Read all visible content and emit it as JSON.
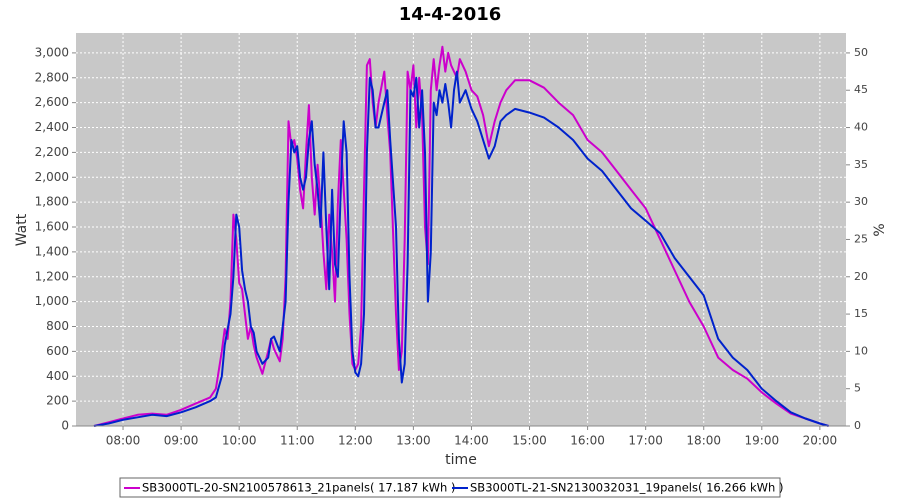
{
  "chart_data": {
    "type": "line",
    "title": "14-4-2016",
    "x_label": "time",
    "y_label": "Watt",
    "y2_label": "%",
    "x": [
      7.5,
      7.75,
      8.0,
      8.25,
      8.5,
      8.75,
      9.0,
      9.25,
      9.5,
      9.6,
      9.7,
      9.75,
      9.8,
      9.85,
      9.9,
      9.95,
      10.0,
      10.05,
      10.1,
      10.15,
      10.2,
      10.25,
      10.3,
      10.4,
      10.5,
      10.55,
      10.6,
      10.7,
      10.75,
      10.8,
      10.85,
      10.9,
      10.95,
      11.0,
      11.05,
      11.1,
      11.15,
      11.2,
      11.25,
      11.3,
      11.35,
      11.4,
      11.45,
      11.5,
      11.55,
      11.6,
      11.65,
      11.7,
      11.75,
      11.8,
      11.85,
      11.9,
      11.95,
      12.0,
      12.05,
      12.1,
      12.15,
      12.2,
      12.25,
      12.3,
      12.35,
      12.4,
      12.5,
      12.55,
      12.6,
      12.7,
      12.75,
      12.8,
      12.85,
      12.9,
      12.95,
      13.0,
      13.05,
      13.1,
      13.15,
      13.2,
      13.25,
      13.3,
      13.35,
      13.4,
      13.45,
      13.5,
      13.55,
      13.6,
      13.65,
      13.7,
      13.75,
      13.8,
      13.9,
      14.0,
      14.1,
      14.2,
      14.3,
      14.4,
      14.5,
      14.6,
      14.75,
      15.0,
      15.25,
      15.5,
      15.75,
      16.0,
      16.25,
      16.5,
      16.75,
      17.0,
      17.25,
      17.5,
      17.75,
      18.0,
      18.25,
      18.5,
      18.75,
      19.0,
      19.25,
      19.5,
      19.75,
      20.0,
      20.15
    ],
    "series": [
      {
        "name": "SB3000TL-20-SN2100578613_21panels( 17.187 kWh )",
        "color": "#cc00cc",
        "values": [
          0,
          30,
          60,
          90,
          100,
          90,
          130,
          180,
          230,
          300,
          600,
          780,
          700,
          1000,
          1700,
          1500,
          1150,
          1100,
          900,
          700,
          800,
          650,
          550,
          420,
          600,
          700,
          620,
          520,
          700,
          1200,
          2450,
          2250,
          2300,
          2150,
          1900,
          1750,
          2200,
          2580,
          2000,
          1700,
          2100,
          1800,
          1400,
          1100,
          1700,
          1400,
          1000,
          1800,
          2300,
          1900,
          1500,
          900,
          500,
          450,
          500,
          800,
          1900,
          2900,
          2950,
          2600,
          2400,
          2600,
          2850,
          2500,
          2200,
          900,
          450,
          600,
          1500,
          2850,
          2700,
          2900,
          2400,
          2800,
          2500,
          1600,
          1300,
          2700,
          2950,
          2700,
          2900,
          3050,
          2850,
          3000,
          2900,
          2850,
          2800,
          2950,
          2850,
          2700,
          2650,
          2500,
          2250,
          2450,
          2600,
          2700,
          2780,
          2780,
          2720,
          2600,
          2500,
          2300,
          2200,
          2050,
          1900,
          1750,
          1500,
          1250,
          1000,
          800,
          550,
          450,
          380,
          270,
          180,
          100,
          60,
          20,
          0
        ]
      },
      {
        "name": "SB3000TL-21-SN2130032031_19panels( 16.266 kWh )",
        "color": "#0022cc",
        "values": [
          0,
          20,
          50,
          70,
          90,
          80,
          110,
          150,
          200,
          230,
          400,
          650,
          780,
          900,
          1200,
          1700,
          1600,
          1250,
          1100,
          1000,
          800,
          750,
          600,
          500,
          550,
          700,
          720,
          600,
          800,
          1000,
          1800,
          2300,
          2200,
          2250,
          2000,
          1900,
          2000,
          2300,
          2450,
          2100,
          1900,
          1600,
          2200,
          1600,
          1100,
          1900,
          1300,
          1200,
          1900,
          2450,
          2200,
          1200,
          600,
          430,
          400,
          500,
          900,
          2200,
          2800,
          2700,
          2400,
          2400,
          2600,
          2700,
          2300,
          1600,
          700,
          350,
          500,
          1300,
          2700,
          2650,
          2800,
          2400,
          2700,
          2200,
          1000,
          1400,
          2600,
          2500,
          2700,
          2600,
          2750,
          2600,
          2400,
          2700,
          2850,
          2600,
          2700,
          2550,
          2450,
          2300,
          2150,
          2250,
          2450,
          2500,
          2550,
          2520,
          2480,
          2400,
          2300,
          2150,
          2050,
          1900,
          1750,
          1650,
          1550,
          1350,
          1200,
          1050,
          700,
          550,
          450,
          300,
          200,
          110,
          60,
          20,
          0
        ]
      }
    ],
    "xlim": [
      7.19,
      20.45
    ],
    "xticks": [
      {
        "value": 8,
        "label": "08:00"
      },
      {
        "value": 9,
        "label": "09:00"
      },
      {
        "value": 10,
        "label": "10:00"
      },
      {
        "value": 11,
        "label": "11:00"
      },
      {
        "value": 12,
        "label": "12:00"
      },
      {
        "value": 13,
        "label": "13:00"
      },
      {
        "value": 14,
        "label": "14:00"
      },
      {
        "value": 15,
        "label": "15:00"
      },
      {
        "value": 16,
        "label": "16:00"
      },
      {
        "value": 17,
        "label": "17:00"
      },
      {
        "value": 18,
        "label": "18:00"
      },
      {
        "value": 19,
        "label": "19:00"
      },
      {
        "value": 20,
        "label": "20:00"
      }
    ],
    "ylim": [
      0,
      3160
    ],
    "yticks": [
      0,
      200,
      400,
      600,
      800,
      {
        "value": 1000,
        "label": "1,000"
      },
      {
        "value": 1200,
        "label": "1,200"
      },
      {
        "value": 1400,
        "label": "1,400"
      },
      {
        "value": 1600,
        "label": "1,600"
      },
      {
        "value": 1800,
        "label": "1,800"
      },
      {
        "value": 2000,
        "label": "2,000"
      },
      {
        "value": 2200,
        "label": "2,200"
      },
      {
        "value": 2400,
        "label": "2,400"
      },
      {
        "value": 2600,
        "label": "2,600"
      },
      {
        "value": 2800,
        "label": "2,800"
      },
      {
        "value": 3000,
        "label": "3,000"
      }
    ],
    "y2lim": [
      0,
      52.67
    ],
    "y2ticks": [
      0,
      5,
      10,
      15,
      20,
      25,
      30,
      35,
      40,
      45,
      50
    ],
    "grid": true,
    "legend": "bottom"
  }
}
